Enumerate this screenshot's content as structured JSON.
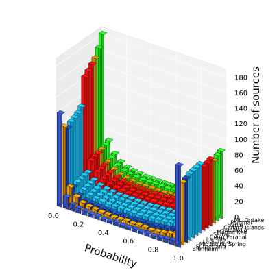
{
  "chart_data": {
    "type": "bar3d",
    "xlabel": "Probability",
    "zlabel": "Number of sources",
    "x_ticks": [
      "0.0",
      "0.2",
      "0.4",
      "0.6",
      "0.8",
      "1.0"
    ],
    "z_ticks": [
      "0",
      "20",
      "40",
      "60",
      "80",
      "100",
      "120",
      "140",
      "160",
      "180"
    ],
    "zlim": [
      0,
      190
    ],
    "x_bins": [
      0.0,
      0.05,
      0.1,
      0.15,
      0.2,
      0.25,
      0.3,
      0.35,
      0.4,
      0.45,
      0.5,
      0.55,
      0.6,
      0.65,
      0.7,
      0.75,
      0.8,
      0.85,
      0.9,
      0.95
    ],
    "sites": [
      "Blenheim",
      "Sutherland",
      "Mt. Siding Spring",
      "La Serena",
      "La Silla",
      "Cerro Paranal",
      "Salta",
      "Mauna Kea",
      "Haleakala",
      "Canary Islands",
      "Hanle",
      "Palomar",
      "Mt. Ontake"
    ],
    "series": [
      {
        "name": "Blenheim",
        "color": "#3355cc",
        "values": [
          120,
          15,
          8,
          6,
          5,
          4,
          4,
          3,
          3,
          4,
          3,
          3,
          4,
          3,
          4,
          3,
          4,
          5,
          6,
          105
        ]
      },
      {
        "name": "Sutherland",
        "color": "#ee9900",
        "values": [
          100,
          25,
          15,
          10,
          8,
          7,
          6,
          6,
          5,
          5,
          6,
          5,
          6,
          6,
          5,
          6,
          7,
          9,
          12,
          80
        ]
      },
      {
        "name": "Mt. Siding Spring",
        "color": "#2244aa",
        "values": [
          95,
          22,
          14,
          10,
          9,
          8,
          7,
          7,
          6,
          7,
          6,
          7,
          7,
          8,
          8,
          9,
          10,
          12,
          15,
          82
        ]
      },
      {
        "name": "La Serena",
        "color": "#1ab8ee",
        "values": [
          100,
          25,
          18,
          14,
          12,
          11,
          10,
          10,
          10,
          10,
          10,
          10,
          11,
          11,
          12,
          12,
          14,
          16,
          20,
          85
        ]
      },
      {
        "name": "La Silla",
        "color": "#1ab8ee",
        "values": [
          102,
          26,
          19,
          15,
          13,
          12,
          11,
          11,
          11,
          11,
          11,
          11,
          12,
          12,
          13,
          13,
          15,
          17,
          21,
          86
        ]
      },
      {
        "name": "Cerro Paranal",
        "color": "#1ab8ee",
        "values": [
          105,
          27,
          20,
          16,
          14,
          13,
          12,
          12,
          12,
          12,
          12,
          12,
          13,
          13,
          14,
          14,
          16,
          18,
          22,
          87
        ]
      },
      {
        "name": "Salta",
        "color": "#1ab8ee",
        "values": [
          110,
          28,
          21,
          17,
          15,
          14,
          13,
          13,
          13,
          13,
          13,
          13,
          14,
          14,
          15,
          15,
          17,
          19,
          23,
          88
        ]
      },
      {
        "name": "Mauna Kea",
        "color": "#ee1111",
        "values": [
          145,
          40,
          28,
          22,
          18,
          16,
          15,
          14,
          14,
          14,
          14,
          15,
          15,
          16,
          17,
          19,
          21,
          24,
          29,
          82
        ]
      },
      {
        "name": "Haleakala",
        "color": "#ee1111",
        "values": [
          150,
          42,
          29,
          23,
          19,
          17,
          16,
          15,
          15,
          15,
          15,
          16,
          16,
          17,
          18,
          20,
          22,
          25,
          30,
          83
        ]
      },
      {
        "name": "Canary Islands",
        "color": "#ee1111",
        "values": [
          155,
          43,
          30,
          24,
          20,
          18,
          17,
          16,
          16,
          16,
          16,
          17,
          17,
          18,
          19,
          21,
          23,
          26,
          31,
          85
        ]
      },
      {
        "name": "Hanle",
        "color": "#b88a00",
        "values": [
          160,
          45,
          32,
          25,
          21,
          19,
          18,
          17,
          17,
          17,
          17,
          17,
          18,
          19,
          20,
          22,
          24,
          27,
          32,
          80
        ]
      },
      {
        "name": "Palomar",
        "color": "#22ee22",
        "values": [
          170,
          48,
          34,
          27,
          23,
          21,
          20,
          19,
          19,
          19,
          19,
          19,
          20,
          21,
          22,
          24,
          26,
          29,
          34,
          84
        ]
      },
      {
        "name": "Mt. Ontake",
        "color": "#22ee22",
        "values": [
          185,
          50,
          36,
          28,
          24,
          22,
          21,
          20,
          20,
          20,
          20,
          20,
          21,
          22,
          23,
          25,
          27,
          30,
          35,
          86
        ]
      }
    ],
    "grid": true,
    "legend": "none"
  }
}
